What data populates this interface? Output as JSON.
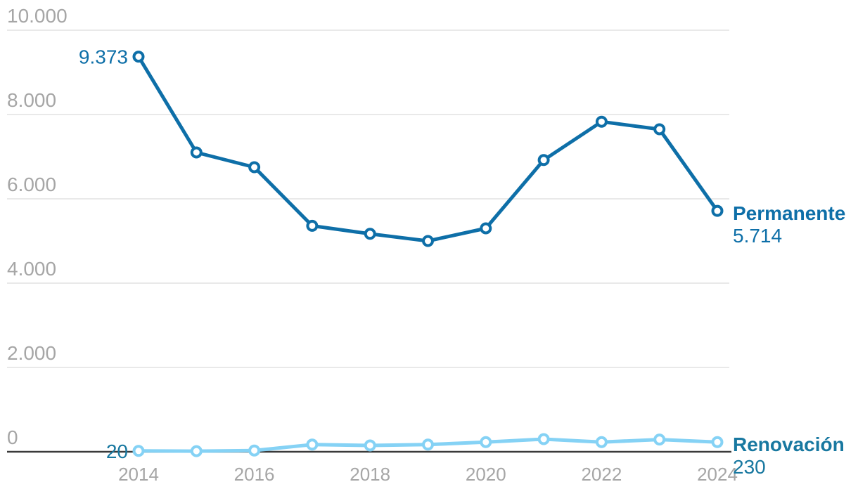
{
  "chart_data": {
    "type": "line",
    "x": [
      2014,
      2015,
      2016,
      2017,
      2018,
      2019,
      2020,
      2021,
      2022,
      2023,
      2024
    ],
    "series": [
      {
        "name": "Permanente",
        "line_color": "#0e6fa8",
        "label_color": "#0e6fa8",
        "values": [
          9373,
          7100,
          6750,
          5360,
          5170,
          5000,
          5300,
          6920,
          7830,
          7650,
          5714
        ],
        "first_label": "9.373",
        "end_label": "5.714"
      },
      {
        "name": "Renovación",
        "line_color": "#85d2f5",
        "label_color": "#1878a0",
        "values": [
          20,
          15,
          30,
          170,
          150,
          170,
          230,
          300,
          230,
          290,
          230
        ],
        "first_label": "20",
        "end_label": "230"
      }
    ],
    "y_ticks": [
      "10.000",
      "8.000",
      "6.000",
      "4.000",
      "2.000",
      "0"
    ],
    "y_tick_values": [
      10000,
      8000,
      6000,
      4000,
      2000,
      0
    ],
    "x_ticks": [
      "2014",
      "2016",
      "2018",
      "2020",
      "2022",
      "2024"
    ],
    "x_tick_values": [
      2014,
      2016,
      2018,
      2020,
      2022,
      2024
    ],
    "ylim": [
      0,
      10000
    ],
    "grid": true,
    "marker_style": "open-circle",
    "legend_position": "end-of-line-labels"
  },
  "colors": {
    "permanente": "#0e6fa8",
    "renovacion_line": "#85d2f5",
    "renovacion_label": "#1878a0",
    "tick_label": "#a6a6a6",
    "gridline": "#e2e2e2",
    "axis_line": "#3a3a3a",
    "background": "#ffffff"
  }
}
